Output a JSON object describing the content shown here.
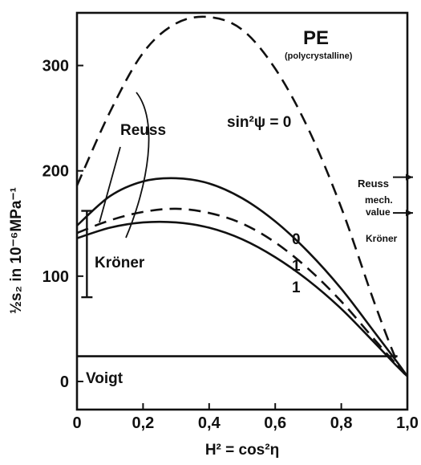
{
  "chart_data": {
    "type": "line",
    "title": "PE",
    "subtitle": "(polycrystalline)",
    "xlabel": "H² = cos²η",
    "ylabel": "½s₂ in 10⁻⁶MPa⁻¹",
    "xlim": [
      0,
      1
    ],
    "ylim": [
      0,
      350
    ],
    "xticks": [
      "0",
      "0,2",
      "0,4",
      "0,6",
      "0,8",
      "1,0"
    ],
    "yticks": [
      "0",
      "100",
      "200",
      "300"
    ],
    "grid": false,
    "series": [
      {
        "style": "dashed",
        "x": [
          0,
          0.1,
          0.2,
          0.3,
          0.4,
          0.5,
          0.6,
          0.7,
          0.8,
          0.9,
          0.97,
          1.0
        ],
        "y": [
          186,
          256,
          312,
          340,
          346,
          334,
          297,
          240,
          165,
          75,
          18,
          5
        ]
      },
      {
        "style": "solid",
        "x": [
          0,
          0.1,
          0.2,
          0.3,
          0.4,
          0.5,
          0.6,
          0.7,
          0.8,
          0.9,
          0.97,
          1.0
        ],
        "y": [
          148,
          176,
          190,
          193,
          188,
          174,
          152,
          123,
          88,
          47,
          18,
          5
        ]
      },
      {
        "style": "dashed",
        "x": [
          0,
          0.1,
          0.2,
          0.3,
          0.4,
          0.5,
          0.6,
          0.7,
          0.8,
          0.9,
          0.97,
          1.0
        ],
        "y": [
          141,
          153,
          161,
          164,
          160,
          150,
          132,
          107,
          76,
          40,
          15,
          5
        ]
      },
      {
        "style": "solid",
        "x": [
          0,
          0.1,
          0.2,
          0.3,
          0.4,
          0.5,
          0.6,
          0.7,
          0.8,
          0.9,
          0.97,
          1.0
        ],
        "y": [
          136,
          146,
          151,
          151,
          146,
          135,
          118,
          96,
          69,
          37,
          14,
          5
        ]
      },
      {
        "style": "solid",
        "x": [
          0,
          0.97
        ],
        "y": [
          24,
          24
        ]
      }
    ],
    "error_bar": {
      "x": 0.03,
      "y_low": 80,
      "y_high": 162
    },
    "annotations": {
      "reuss": "Reuss",
      "kroner": "Kröner",
      "voigt": "Voigt",
      "sin_label": "sin²ψ = 0",
      "label_0": "0",
      "label_1a": "1",
      "label_1b": "1",
      "reuss_mech_line1": "Reuss",
      "reuss_mech_line2": "mech.",
      "reuss_mech_line3": "value",
      "kroner_right": "Kröner"
    },
    "mech_values": {
      "reuss": 194,
      "kroner": 160
    }
  }
}
